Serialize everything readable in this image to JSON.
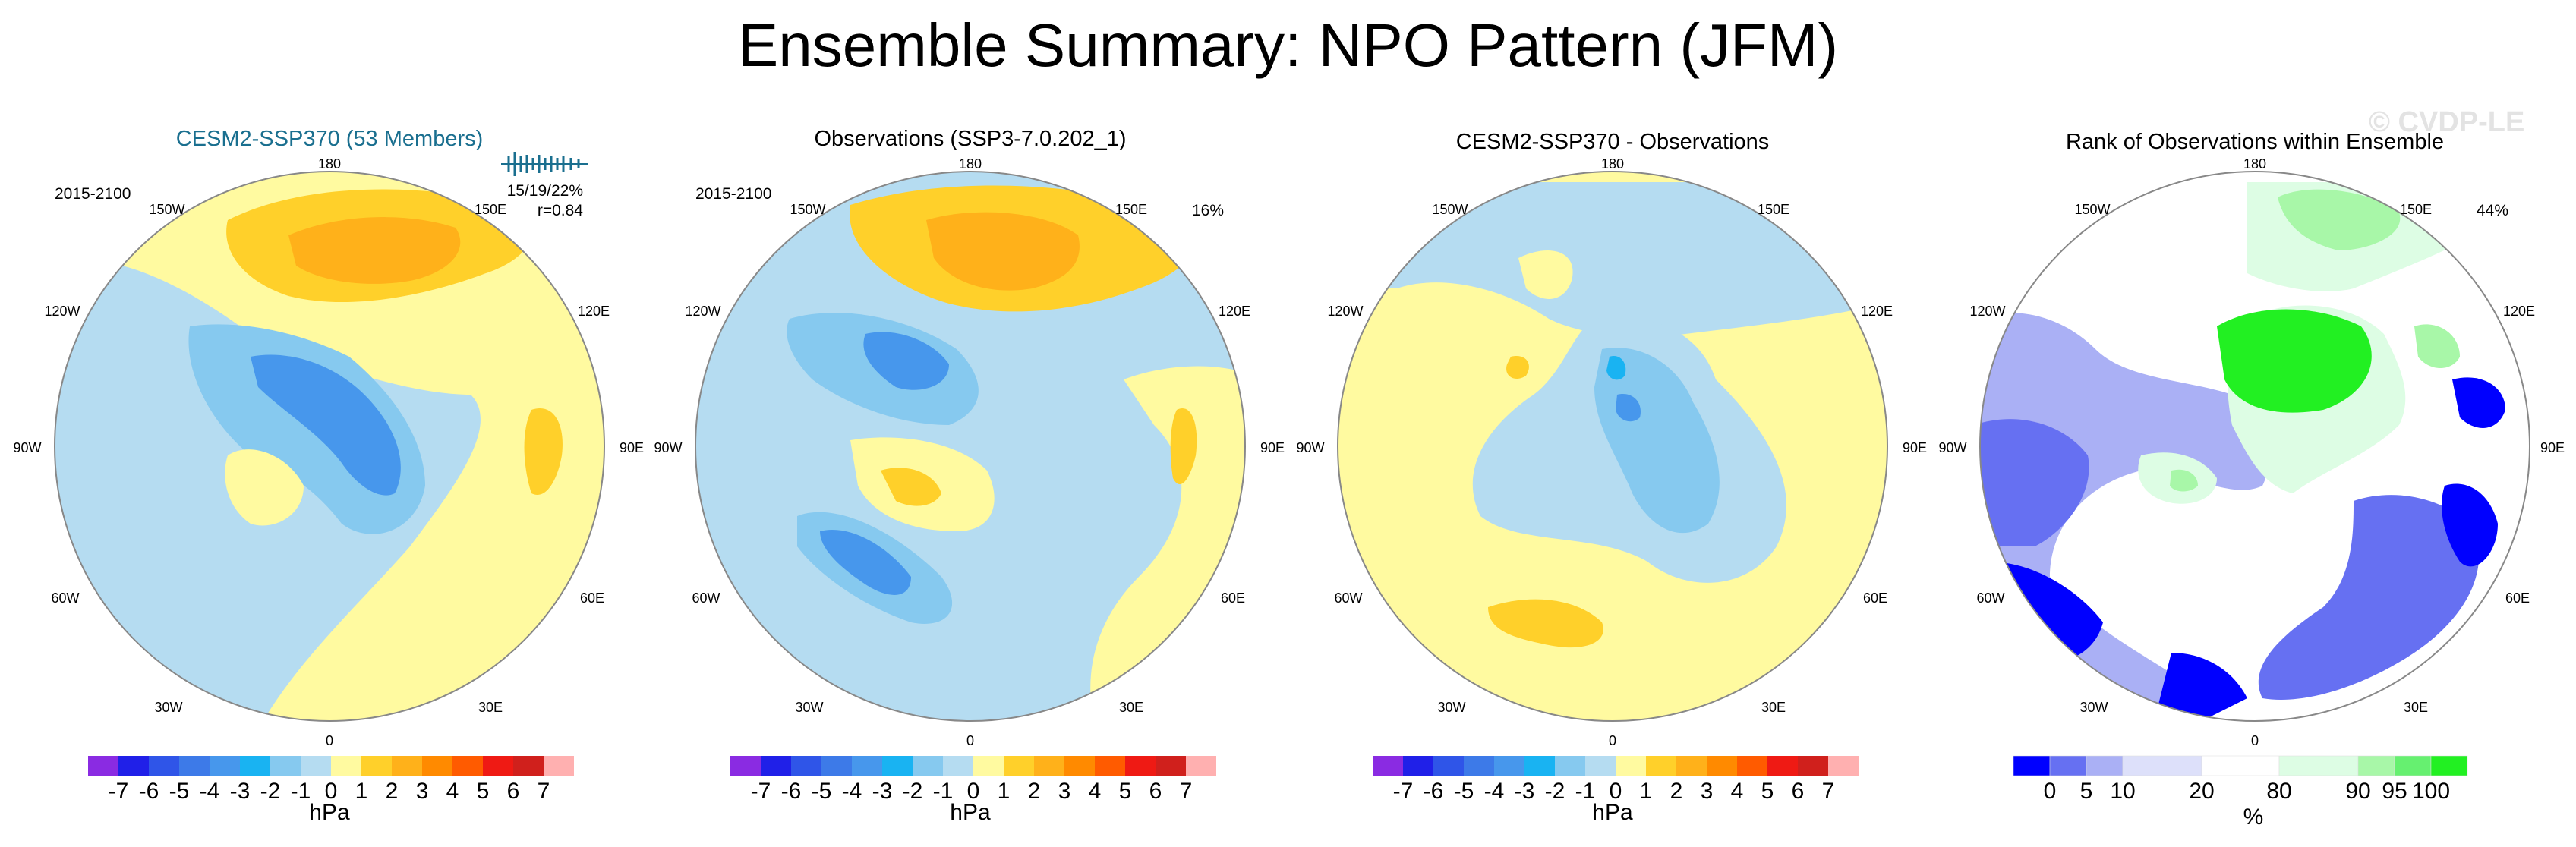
{
  "title": "Ensemble Summary: NPO Pattern (JFM)",
  "watermark": "© CVDP-LE",
  "longitude_labels": {
    "top": "180",
    "bottom": "0",
    "left": "90W",
    "right": "90E",
    "upper_left_outer": "120W",
    "upper_left_inner": "150W",
    "upper_right_inner": "150E",
    "upper_right_outer": "120E",
    "lower_left_outer": "60W",
    "lower_left_inner": "30W",
    "lower_right_inner": "30E",
    "lower_right_outer": "60E"
  },
  "panels": [
    {
      "title": "CESM2-SSP370 (53 Members)",
      "title_color": "#1a6f8f",
      "period": "2015-2100",
      "stats": "15/19/22%",
      "corr": "r=0.84",
      "pct": ""
    },
    {
      "title": "Observations (SSP3-7.0.202_1)",
      "title_color": "#000000",
      "period": "2015-2100",
      "stats": "",
      "corr": "",
      "pct": "16%"
    },
    {
      "title": "CESM2-SSP370 - Observations",
      "title_color": "#000000",
      "period": "",
      "stats": "",
      "corr": "",
      "pct": ""
    },
    {
      "title": "Rank of Observations within Ensemble",
      "title_color": "#000000",
      "period": "",
      "stats": "",
      "corr": "",
      "pct": "44%"
    }
  ],
  "hpa_colorbar": {
    "unit": "hPa",
    "tick_labels": [
      "-7",
      "-6",
      "-5",
      "-4",
      "-3",
      "-2",
      "-1",
      "0",
      "1",
      "2",
      "3",
      "4",
      "5",
      "6",
      "7"
    ],
    "colors": [
      "#8a2be2",
      "#2020e8",
      "#2f55e8",
      "#3d7ae8",
      "#4797ec",
      "#19b3f2",
      "#86c9ef",
      "#b5dcf1",
      "#fffaa0",
      "#ffd02a",
      "#ffb11a",
      "#ff8a00",
      "#ff5b00",
      "#ef1a14",
      "#d0201c",
      "#ffb0b0"
    ]
  },
  "rank_colorbar": {
    "unit": "%",
    "tick_labels": [
      "0",
      "5",
      "10",
      "20",
      "80",
      "90",
      "95",
      "100"
    ],
    "colors": [
      "#0000ff",
      "#6670f2",
      "#aab0f5",
      "#dde0fa",
      "#ffffff",
      "#ddfde4",
      "#a8f7a8",
      "#66f070",
      "#22f022"
    ]
  },
  "map_colors": {
    "land_outline": "#333333",
    "circle_border": "#888888"
  }
}
